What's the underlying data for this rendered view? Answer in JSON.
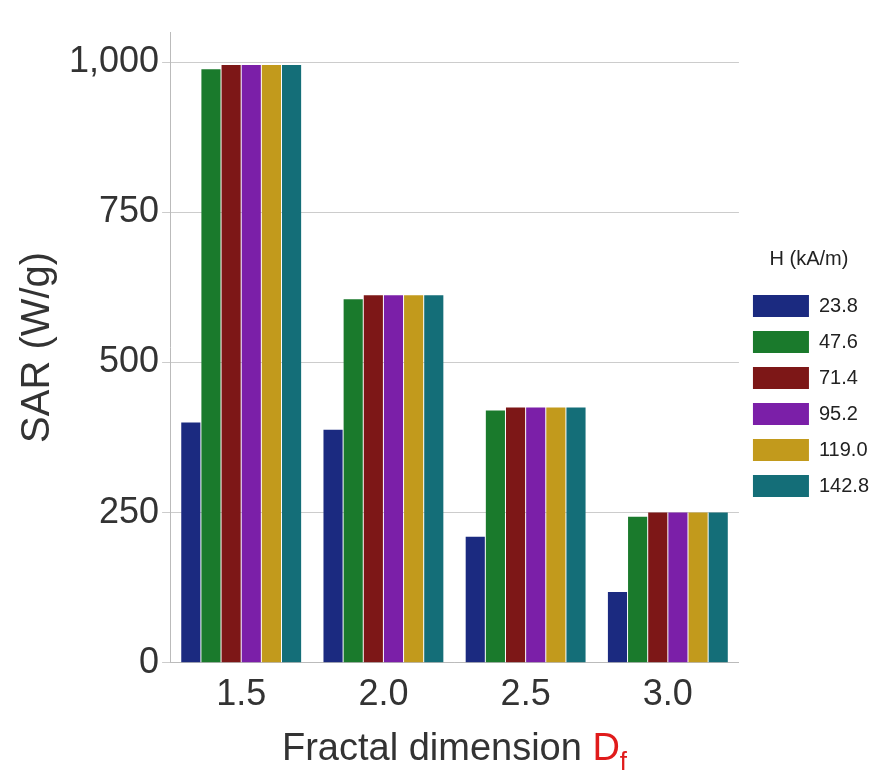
{
  "chart_data": {
    "type": "bar",
    "y_label": "SAR (W/g)",
    "x_label": "Fractal dimension",
    "x_label_symbol": "D",
    "x_label_symbol_subscript": "f",
    "legend_title": "H (kA/m)",
    "categories": [
      "1.5",
      "2.0",
      "2.5",
      "3.0"
    ],
    "series": [
      {
        "name": "23.8",
        "color": "#1b2a80",
        "values": [
          400,
          388,
          210,
          118
        ]
      },
      {
        "name": "47.6",
        "color": "#1a7a2c",
        "values": [
          988,
          605,
          420,
          243
        ]
      },
      {
        "name": "71.4",
        "color": "#7d1717",
        "values": [
          995,
          612,
          425,
          250
        ]
      },
      {
        "name": "95.2",
        "color": "#7b1fa8",
        "values": [
          995,
          612,
          425,
          250
        ]
      },
      {
        "name": "119.0",
        "color": "#c29a1c",
        "values": [
          995,
          612,
          425,
          250
        ]
      },
      {
        "name": "142.8",
        "color": "#146e78",
        "values": [
          995,
          612,
          425,
          250
        ]
      }
    ],
    "ylim": [
      0,
      1050
    ],
    "yticks": [
      0,
      250,
      500,
      750,
      1000
    ],
    "grid": true,
    "legend": "right"
  }
}
